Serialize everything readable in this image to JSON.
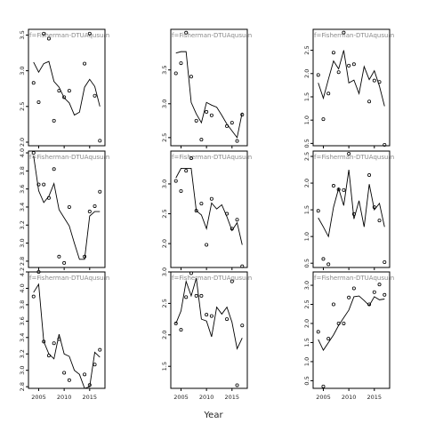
{
  "chart_data": {
    "type": "line",
    "xlabel": "Year",
    "ylabel": "",
    "facet_label": "f=Fisherman-DTUAqusum",
    "x_ticks": [
      2005,
      2010,
      2015
    ],
    "panels": [
      {
        "row": 0,
        "col": 0,
        "ylim": [
          1.95,
          3.58
        ],
        "yticks": [
          2.0,
          2.5,
          3.0,
          3.5
        ],
        "ytick_labels": [
          "2.0",
          "2.5",
          "3.0",
          "3.5"
        ],
        "observed": [
          [
            2004,
            2.83
          ],
          [
            2005,
            2.56
          ],
          [
            2006,
            3.52
          ],
          [
            2007,
            3.45
          ],
          [
            2008,
            2.3
          ],
          [
            2009,
            2.72
          ],
          [
            2010,
            2.63
          ],
          [
            2011,
            2.72
          ],
          [
            2014,
            3.1
          ],
          [
            2015,
            3.52
          ],
          [
            2016,
            2.65
          ],
          [
            2017,
            2.02
          ]
        ],
        "fitted": [
          [
            2004,
            3.12
          ],
          [
            2005,
            2.98
          ],
          [
            2006,
            3.1
          ],
          [
            2007,
            3.13
          ],
          [
            2008,
            2.85
          ],
          [
            2009,
            2.77
          ],
          [
            2010,
            2.62
          ],
          [
            2011,
            2.55
          ],
          [
            2012,
            2.38
          ],
          [
            2013,
            2.42
          ],
          [
            2014,
            2.77
          ],
          [
            2015,
            2.88
          ],
          [
            2016,
            2.78
          ],
          [
            2017,
            2.5
          ]
        ]
      },
      {
        "row": 0,
        "col": 1,
        "ylim": [
          2.38,
          4.1
        ],
        "yticks": [
          2.5,
          3.0,
          3.5
        ],
        "ytick_labels": [
          "2.5",
          "3.0",
          "3.5"
        ],
        "observed": [
          [
            2004,
            3.45
          ],
          [
            2005,
            3.6
          ],
          [
            2006,
            4.05
          ],
          [
            2007,
            3.4
          ],
          [
            2008,
            2.75
          ],
          [
            2009,
            2.47
          ],
          [
            2010,
            2.88
          ],
          [
            2011,
            2.83
          ],
          [
            2014,
            2.67
          ],
          [
            2015,
            2.72
          ],
          [
            2016,
            2.45
          ],
          [
            2017,
            2.84
          ]
        ],
        "fitted": [
          [
            2004,
            3.75
          ],
          [
            2005,
            3.77
          ],
          [
            2006,
            3.77
          ],
          [
            2007,
            3.02
          ],
          [
            2008,
            2.85
          ],
          [
            2009,
            2.72
          ],
          [
            2010,
            3.02
          ],
          [
            2011,
            2.98
          ],
          [
            2012,
            2.95
          ],
          [
            2013,
            2.83
          ],
          [
            2014,
            2.7
          ],
          [
            2015,
            2.6
          ],
          [
            2016,
            2.5
          ],
          [
            2017,
            2.87
          ]
        ]
      },
      {
        "row": 0,
        "col": 2,
        "ylim": [
          0.45,
          2.95
        ],
        "yticks": [
          0.5,
          1.0,
          1.5,
          2.0,
          2.5
        ],
        "ytick_labels": [
          "0.5",
          "1.0",
          "1.5",
          "2.0",
          "2.5"
        ],
        "observed": [
          [
            2004,
            1.97
          ],
          [
            2005,
            1.02
          ],
          [
            2006,
            1.57
          ],
          [
            2007,
            2.45
          ],
          [
            2008,
            2.03
          ],
          [
            2009,
            2.88
          ],
          [
            2010,
            2.17
          ],
          [
            2011,
            2.2
          ],
          [
            2014,
            1.4
          ],
          [
            2015,
            1.85
          ],
          [
            2016,
            1.82
          ],
          [
            2017,
            0.47
          ]
        ],
        "fitted": [
          [
            2004,
            1.8
          ],
          [
            2005,
            1.47
          ],
          [
            2006,
            1.88
          ],
          [
            2007,
            2.27
          ],
          [
            2008,
            2.1
          ],
          [
            2009,
            2.5
          ],
          [
            2010,
            1.8
          ],
          [
            2011,
            1.86
          ],
          [
            2012,
            1.57
          ],
          [
            2013,
            2.15
          ],
          [
            2014,
            1.87
          ],
          [
            2015,
            2.06
          ],
          [
            2016,
            1.73
          ],
          [
            2017,
            1.3
          ]
        ]
      },
      {
        "row": 1,
        "col": 0,
        "ylim": [
          2.73,
          4.02
        ],
        "yticks": [
          2.8,
          3.0,
          3.2,
          3.4,
          3.6,
          3.8,
          4.0
        ],
        "ytick_labels": [
          "2.8",
          "3.0",
          "3.2",
          "3.4",
          "3.6",
          "3.8",
          "4.0"
        ],
        "observed": [
          [
            2004,
            4.0
          ],
          [
            2005,
            3.65
          ],
          [
            2006,
            3.65
          ],
          [
            2007,
            3.5
          ],
          [
            2008,
            3.82
          ],
          [
            2009,
            2.85
          ],
          [
            2010,
            2.78
          ],
          [
            2011,
            3.4
          ],
          [
            2014,
            2.85
          ],
          [
            2015,
            3.35
          ],
          [
            2016,
            3.41
          ],
          [
            2017,
            3.57
          ]
        ],
        "fitted": [
          [
            2004,
            3.97
          ],
          [
            2005,
            3.58
          ],
          [
            2006,
            3.45
          ],
          [
            2007,
            3.52
          ],
          [
            2008,
            3.66
          ],
          [
            2009,
            3.37
          ],
          [
            2010,
            3.28
          ],
          [
            2011,
            3.19
          ],
          [
            2012,
            3.0
          ],
          [
            2013,
            2.82
          ],
          [
            2014,
            2.82
          ],
          [
            2015,
            3.3
          ],
          [
            2016,
            3.35
          ],
          [
            2017,
            3.35
          ]
        ]
      },
      {
        "row": 1,
        "col": 1,
        "ylim": [
          1.6,
          3.55
        ],
        "yticks": [
          2.0,
          2.5,
          3.0
        ],
        "ytick_labels": [
          "2.0",
          "2.5",
          "3.0"
        ],
        "observed": [
          [
            2004,
            3.05
          ],
          [
            2005,
            2.88
          ],
          [
            2006,
            3.22
          ],
          [
            2007,
            3.43
          ],
          [
            2008,
            2.55
          ],
          [
            2009,
            2.67
          ],
          [
            2010,
            1.98
          ],
          [
            2011,
            2.75
          ],
          [
            2014,
            2.5
          ],
          [
            2015,
            2.25
          ],
          [
            2016,
            2.4
          ],
          [
            2017,
            1.62
          ]
        ],
        "fitted": [
          [
            2004,
            3.1
          ],
          [
            2005,
            3.26
          ],
          [
            2006,
            3.26
          ],
          [
            2007,
            3.26
          ],
          [
            2008,
            2.55
          ],
          [
            2009,
            2.48
          ],
          [
            2010,
            2.25
          ],
          [
            2011,
            2.68
          ],
          [
            2012,
            2.58
          ],
          [
            2013,
            2.65
          ],
          [
            2014,
            2.45
          ],
          [
            2015,
            2.22
          ],
          [
            2016,
            2.35
          ],
          [
            2017,
            1.98
          ]
        ]
      },
      {
        "row": 1,
        "col": 2,
        "ylim": [
          0.42,
          2.6
        ],
        "yticks": [
          0.5,
          1.0,
          1.5,
          2.0,
          2.5
        ],
        "ytick_labels": [
          "0.5",
          "1.0",
          "1.5",
          "2.0",
          "2.5"
        ],
        "observed": [
          [
            2004,
            1.48
          ],
          [
            2005,
            0.58
          ],
          [
            2006,
            0.48
          ],
          [
            2007,
            1.95
          ],
          [
            2008,
            1.88
          ],
          [
            2009,
            1.87
          ],
          [
            2010,
            2.55
          ],
          [
            2011,
            1.42
          ],
          [
            2014,
            2.15
          ],
          [
            2015,
            1.55
          ],
          [
            2016,
            1.3
          ],
          [
            2017,
            0.52
          ]
        ],
        "fitted": [
          [
            2004,
            1.35
          ],
          [
            2005,
            1.18
          ],
          [
            2006,
            1.0
          ],
          [
            2007,
            1.55
          ],
          [
            2008,
            1.9
          ],
          [
            2009,
            1.58
          ],
          [
            2010,
            2.25
          ],
          [
            2011,
            1.33
          ],
          [
            2012,
            1.67
          ],
          [
            2013,
            1.18
          ],
          [
            2014,
            1.98
          ],
          [
            2015,
            1.5
          ],
          [
            2016,
            1.62
          ],
          [
            2017,
            1.18
          ]
        ]
      },
      {
        "row": 2,
        "col": 0,
        "ylim": [
          2.78,
          4.2
        ],
        "yticks": [
          2.8,
          3.0,
          3.2,
          3.4,
          3.6,
          3.8,
          4.0,
          4.2
        ],
        "ytick_labels": [
          "2.8",
          "3.0",
          "3.2",
          "3.4",
          "3.6",
          "3.8",
          "4.0",
          "4.2"
        ],
        "observed": [
          [
            2004,
            3.9
          ],
          [
            2005,
            4.2
          ],
          [
            2006,
            3.35
          ],
          [
            2007,
            3.18
          ],
          [
            2008,
            3.33
          ],
          [
            2009,
            3.38
          ],
          [
            2010,
            2.97
          ],
          [
            2011,
            2.88
          ],
          [
            2014,
            2.95
          ],
          [
            2015,
            2.82
          ],
          [
            2016,
            3.07
          ],
          [
            2017,
            3.25
          ]
        ],
        "fitted": [
          [
            2004,
            3.95
          ],
          [
            2005,
            4.05
          ],
          [
            2006,
            3.35
          ],
          [
            2007,
            3.2
          ],
          [
            2008,
            3.14
          ],
          [
            2009,
            3.44
          ],
          [
            2010,
            3.2
          ],
          [
            2011,
            3.17
          ],
          [
            2012,
            3.0
          ],
          [
            2013,
            2.95
          ],
          [
            2014,
            2.78
          ],
          [
            2015,
            2.8
          ],
          [
            2016,
            3.22
          ],
          [
            2017,
            3.16
          ]
        ]
      },
      {
        "row": 2,
        "col": 1,
        "ylim": [
          1.15,
          3.0
        ],
        "yticks": [
          1.5,
          2.0,
          2.5,
          3.0
        ],
        "ytick_labels": [
          "1.5",
          "2.0",
          "2.5",
          "3.0"
        ],
        "observed": [
          [
            2004,
            2.18
          ],
          [
            2005,
            2.08
          ],
          [
            2006,
            2.6
          ],
          [
            2007,
            2.98
          ],
          [
            2008,
            2.62
          ],
          [
            2009,
            2.62
          ],
          [
            2010,
            2.32
          ],
          [
            2011,
            2.3
          ],
          [
            2014,
            2.25
          ],
          [
            2015,
            2.85
          ],
          [
            2016,
            1.2
          ],
          [
            2017,
            2.15
          ]
        ],
        "fitted": [
          [
            2004,
            2.18
          ],
          [
            2005,
            2.38
          ],
          [
            2006,
            2.85
          ],
          [
            2007,
            2.62
          ],
          [
            2008,
            2.9
          ],
          [
            2009,
            2.25
          ],
          [
            2010,
            2.22
          ],
          [
            2011,
            1.97
          ],
          [
            2012,
            2.44
          ],
          [
            2013,
            2.33
          ],
          [
            2014,
            2.44
          ],
          [
            2015,
            2.2
          ],
          [
            2016,
            1.78
          ],
          [
            2017,
            1.95
          ]
        ]
      },
      {
        "row": 2,
        "col": 2,
        "ylim": [
          0.3,
          3.35
        ],
        "yticks": [
          0.5,
          1.0,
          1.5,
          2.0,
          2.5,
          3.0
        ],
        "ytick_labels": [
          "0.5",
          "1.0",
          "1.5",
          "2.0",
          "2.5",
          "3.0"
        ],
        "observed": [
          [
            2004,
            1.78
          ],
          [
            2005,
            0.35
          ],
          [
            2006,
            1.6
          ],
          [
            2007,
            2.5
          ],
          [
            2008,
            2.0
          ],
          [
            2009,
            2.0
          ],
          [
            2010,
            2.68
          ],
          [
            2011,
            2.92
          ],
          [
            2014,
            2.5
          ],
          [
            2015,
            2.82
          ],
          [
            2016,
            3.02
          ],
          [
            2017,
            2.75
          ]
        ],
        "fitted": [
          [
            2004,
            1.58
          ],
          [
            2005,
            1.3
          ],
          [
            2006,
            1.5
          ],
          [
            2007,
            1.7
          ],
          [
            2008,
            1.95
          ],
          [
            2009,
            2.15
          ],
          [
            2010,
            2.35
          ],
          [
            2011,
            2.7
          ],
          [
            2012,
            2.72
          ],
          [
            2013,
            2.6
          ],
          [
            2014,
            2.47
          ],
          [
            2015,
            2.7
          ],
          [
            2016,
            2.62
          ],
          [
            2017,
            2.64
          ]
        ]
      }
    ]
  }
}
